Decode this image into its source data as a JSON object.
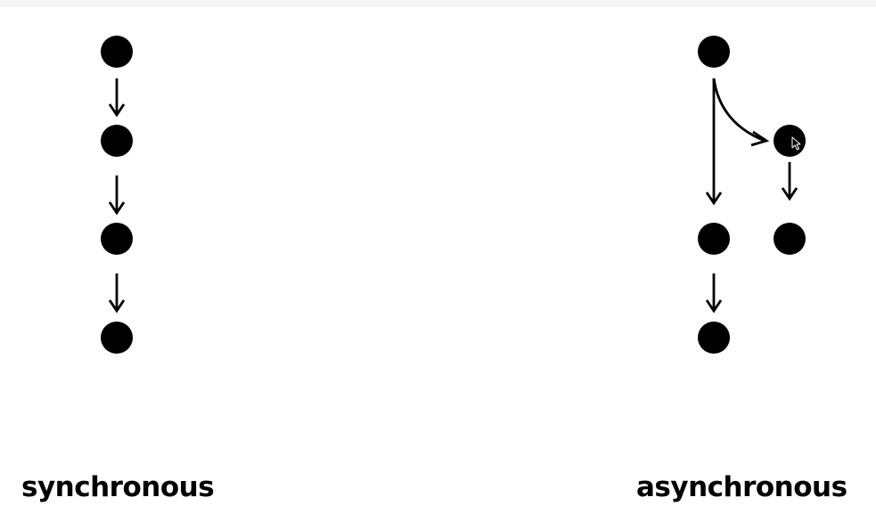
{
  "labels": {
    "sync": "synchronous",
    "async": "asynchronous"
  },
  "colors": {
    "node": "#000000",
    "arrow": "#000000",
    "background": "#ffffff"
  },
  "cursor": {
    "icon": "mouse-pointer-icon"
  }
}
